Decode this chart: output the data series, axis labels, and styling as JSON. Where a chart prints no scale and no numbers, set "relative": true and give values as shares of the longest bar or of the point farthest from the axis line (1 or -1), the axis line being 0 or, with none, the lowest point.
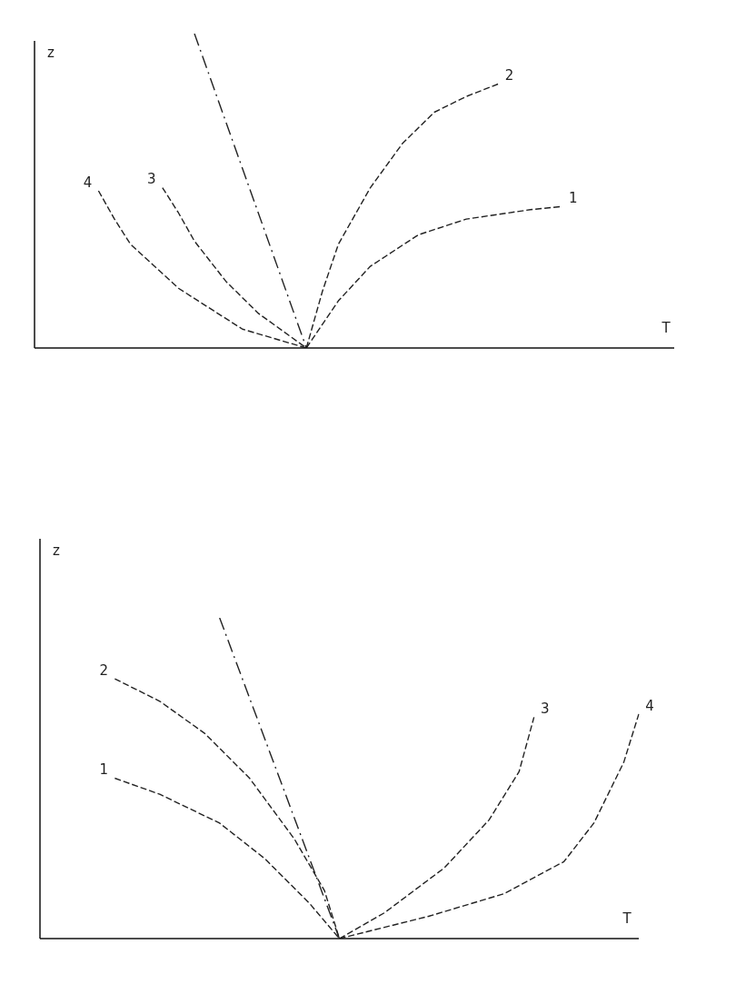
{
  "chart_data": [
    {
      "type": "line",
      "relative": true,
      "xlabel": "T",
      "ylabel": "z",
      "categories": [
        null,
        null,
        null,
        null,
        null,
        null,
        null,
        null,
        null,
        null,
        null,
        null,
        null,
        null,
        null,
        null,
        null,
        null,
        null,
        null,
        null,
        null,
        null,
        null,
        null,
        null,
        null,
        null,
        null,
        null,
        null,
        null,
        null,
        null,
        null,
        null,
        null,
        null,
        null,
        null,
        null
      ],
      "line_style": "dashed",
      "marker": "none",
      "series": [
        {
          "color": "#222222",
          "line_style": "dashdot",
          "values": [
            null,
            null,
            null,
            null,
            null,
            null,
            null,
            null,
            null,
            null,
            1,
            null,
            null,
            null,
            null,
            null,
            null,
            0,
            null,
            null,
            null,
            null,
            null,
            null,
            null,
            null,
            null,
            null,
            null,
            null,
            null,
            null,
            null,
            null,
            null,
            null,
            null,
            null,
            null,
            null,
            null
          ]
        },
        {
          "name": "2",
          "color": "#222222",
          "values": [
            null,
            null,
            null,
            null,
            null,
            null,
            null,
            null,
            null,
            null,
            null,
            null,
            null,
            null,
            null,
            null,
            null,
            0,
            0.18,
            0.33,
            null,
            0.51,
            null,
            0.65,
            null,
            0.75,
            null,
            0.8,
            null,
            0.84,
            null,
            null,
            null,
            null,
            null,
            null,
            null,
            null,
            null,
            null,
            null
          ]
        },
        {
          "name": "1",
          "color": "#222222",
          "values": [
            null,
            null,
            null,
            null,
            null,
            null,
            null,
            null,
            null,
            null,
            null,
            null,
            null,
            null,
            null,
            null,
            null,
            0,
            null,
            0.15,
            null,
            0.26,
            null,
            null,
            0.36,
            null,
            null,
            0.41,
            null,
            null,
            null,
            0.44,
            null,
            0.45,
            null,
            null,
            null,
            null,
            null,
            null,
            null
          ]
        },
        {
          "name": "3",
          "color": "#222222",
          "values": [
            null,
            null,
            null,
            null,
            null,
            null,
            null,
            null,
            0.51,
            0.43,
            0.34,
            null,
            0.21,
            null,
            0.11,
            null,
            null,
            0,
            null,
            null,
            null,
            null,
            null,
            null,
            null,
            null,
            null,
            null,
            null,
            null,
            null,
            null,
            null,
            null,
            null,
            null,
            null,
            null,
            null,
            null,
            null
          ]
        },
        {
          "name": "4",
          "color": "#222222",
          "values": [
            null,
            null,
            null,
            null,
            0.5,
            0.41,
            0.33,
            null,
            null,
            0.19,
            null,
            null,
            null,
            0.06,
            null,
            null,
            null,
            0,
            null,
            null,
            null,
            null,
            null,
            null,
            null,
            null,
            null,
            null,
            null,
            null,
            null,
            null,
            null,
            null,
            null,
            null,
            null,
            null,
            null,
            null,
            null
          ]
        }
      ]
    },
    {
      "type": "line",
      "relative": true,
      "xlabel": "T",
      "ylabel": "z",
      "categories": [
        null,
        null,
        null,
        null,
        null,
        null,
        null,
        null,
        null,
        null,
        null,
        null,
        null,
        null,
        null,
        null,
        null,
        null,
        null,
        null,
        null,
        null,
        null,
        null,
        null,
        null,
        null,
        null,
        null,
        null,
        null,
        null,
        null,
        null,
        null,
        null,
        null,
        null,
        null,
        null,
        null
      ],
      "line_style": "dashed",
      "marker": "none",
      "series": [
        {
          "color": "#222222",
          "line_style": "dashdot",
          "values": [
            null,
            null,
            null,
            null,
            null,
            null,
            null,
            null,
            null,
            null,
            null,
            null,
            1,
            null,
            null,
            null,
            null,
            null,
            null,
            null,
            0,
            null,
            null,
            null,
            null,
            null,
            null,
            null,
            null,
            null,
            null,
            null,
            null,
            null,
            null,
            null,
            null,
            null,
            null,
            null,
            null
          ]
        },
        {
          "name": "2",
          "color": "#222222",
          "values": [
            null,
            null,
            null,
            null,
            null,
            0.81,
            null,
            null,
            0.74,
            null,
            null,
            0.64,
            null,
            null,
            0.5,
            null,
            null,
            0.31,
            null,
            0.15,
            0,
            null,
            null,
            null,
            null,
            null,
            null,
            null,
            null,
            null,
            null,
            null,
            null,
            null,
            null,
            null,
            null,
            null,
            null,
            null,
            null
          ]
        },
        {
          "name": "1",
          "color": "#222222",
          "values": [
            null,
            null,
            null,
            null,
            null,
            0.5,
            null,
            null,
            0.45,
            null,
            null,
            null,
            0.36,
            null,
            null,
            0.25,
            null,
            null,
            0.11,
            null,
            0,
            null,
            null,
            null,
            null,
            null,
            null,
            null,
            null,
            null,
            null,
            null,
            null,
            null,
            null,
            null,
            null,
            null,
            null,
            null,
            null
          ]
        },
        {
          "name": "3",
          "color": "#222222",
          "values": [
            null,
            null,
            null,
            null,
            null,
            null,
            null,
            null,
            null,
            null,
            null,
            null,
            null,
            null,
            null,
            null,
            null,
            null,
            null,
            null,
            0,
            null,
            null,
            0.08,
            null,
            null,
            null,
            0.22,
            null,
            null,
            0.37,
            null,
            0.52,
            0.69,
            null,
            null,
            null,
            null,
            null,
            null,
            null
          ]
        },
        {
          "name": "4",
          "color": "#222222",
          "values": [
            null,
            null,
            null,
            null,
            null,
            null,
            null,
            null,
            null,
            null,
            null,
            null,
            null,
            null,
            null,
            null,
            null,
            null,
            null,
            null,
            0,
            null,
            null,
            null,
            null,
            null,
            0.07,
            null,
            null,
            null,
            null,
            0.14,
            null,
            null,
            null,
            0.24,
            null,
            0.36,
            null,
            0.55,
            0.7
          ]
        }
      ]
    }
  ]
}
